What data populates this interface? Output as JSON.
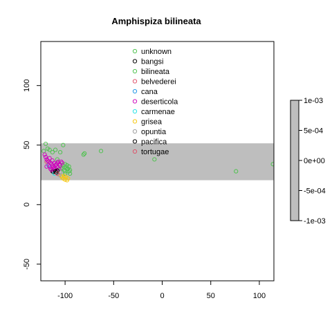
{
  "chart_data": {
    "type": "scatter",
    "title": "Amphispiza bilineata",
    "xlabel": "",
    "ylabel": "",
    "xlim": [
      -125,
      115
    ],
    "ylim": [
      -64,
      137
    ],
    "x_ticks": [
      -100,
      -50,
      0,
      50,
      100
    ],
    "y_ticks": [
      -50,
      0,
      50,
      100
    ],
    "band": {
      "y_from": 20.5,
      "y_to": 51.5,
      "color": "#bebebe"
    },
    "legend_position": "top-center",
    "series": [
      {
        "name": "unknown",
        "color": "#4fc24f",
        "points": [
          [
            -122,
            45
          ],
          [
            -120,
            51
          ],
          [
            -118,
            47
          ],
          [
            -116,
            46
          ],
          [
            -113,
            44
          ],
          [
            -110,
            46
          ],
          [
            -105,
            44
          ],
          [
            -102,
            50
          ],
          [
            -108,
            38
          ],
          [
            -100,
            34
          ],
          [
            -98,
            30
          ],
          [
            -96,
            32
          ],
          [
            -95,
            29
          ],
          [
            -100,
            26
          ],
          [
            -81,
            42
          ],
          [
            -80,
            43
          ],
          [
            -63,
            45
          ],
          [
            -8,
            38
          ],
          [
            76,
            28
          ],
          [
            114,
            34
          ]
        ]
      },
      {
        "name": "bangsi",
        "color": "#000000",
        "points": [
          [
            -113,
            28
          ],
          [
            -112,
            27.5
          ]
        ]
      },
      {
        "name": "bilineata",
        "color": "#4fc24f",
        "points": [
          [
            -104,
            30
          ],
          [
            -103,
            31
          ],
          [
            -101,
            29
          ],
          [
            -99,
            31
          ],
          [
            -98,
            33
          ],
          [
            -97,
            30
          ],
          [
            -96,
            28
          ],
          [
            -95,
            26
          ],
          [
            -100,
            28
          ],
          [
            -102,
            33
          ]
        ]
      },
      {
        "name": "belvederei",
        "color": "#df536b",
        "points": [
          [
            -119,
            36
          ]
        ]
      },
      {
        "name": "cana",
        "color": "#2297e6",
        "points": [
          [
            -117,
            33
          ]
        ]
      },
      {
        "name": "deserticola",
        "color": "#cd0bbc",
        "points": [
          [
            -121,
            42
          ],
          [
            -120,
            40
          ],
          [
            -119,
            38
          ],
          [
            -118,
            37
          ],
          [
            -117,
            36
          ],
          [
            -116,
            39
          ],
          [
            -115,
            35
          ],
          [
            -114,
            34
          ],
          [
            -113,
            33
          ],
          [
            -112,
            32
          ],
          [
            -111,
            31
          ],
          [
            -110,
            33
          ],
          [
            -109,
            34
          ],
          [
            -108,
            35
          ],
          [
            -107,
            36
          ],
          [
            -106,
            34
          ],
          [
            -105,
            33
          ],
          [
            -104,
            36
          ],
          [
            -103,
            35
          ],
          [
            -115,
            30
          ],
          [
            -114,
            29
          ],
          [
            -112,
            30
          ],
          [
            -111,
            35
          ],
          [
            -113,
            37
          ],
          [
            -116,
            32
          ],
          [
            -119,
            32
          ],
          [
            -110,
            30
          ],
          [
            -108,
            31
          ],
          [
            -106,
            30
          ]
        ]
      },
      {
        "name": "carmenae",
        "color": "#28e2e5",
        "points": [
          [
            -111,
            26
          ]
        ]
      },
      {
        "name": "grisea",
        "color": "#f5c710",
        "points": [
          [
            -104,
            24
          ],
          [
            -102,
            22
          ],
          [
            -101,
            24
          ],
          [
            -100,
            21
          ],
          [
            -99,
            23
          ],
          [
            -98,
            20.5
          ],
          [
            -97,
            22
          ],
          [
            -103,
            23
          ]
        ]
      },
      {
        "name": "opuntia",
        "color": "#9e9e9e",
        "points": [
          [
            -106,
            25
          ],
          [
            -105,
            27
          ]
        ]
      },
      {
        "name": "pacifica",
        "color": "#000000",
        "points": [
          [
            -110,
            28
          ],
          [
            -109,
            27
          ],
          [
            -108,
            28.5
          ]
        ]
      },
      {
        "name": "tortugae",
        "color": "#df536b",
        "points": [
          [
            -108,
            26
          ]
        ]
      }
    ],
    "colorbar": {
      "ticks": [
        0.001,
        0.0005,
        0,
        -0.0005,
        -0.001
      ],
      "tick_labels": [
        "1e-03",
        "5e-04",
        "0e+00",
        "-5e-04",
        "-1e-03"
      ],
      "fill": "#bebebe"
    }
  }
}
